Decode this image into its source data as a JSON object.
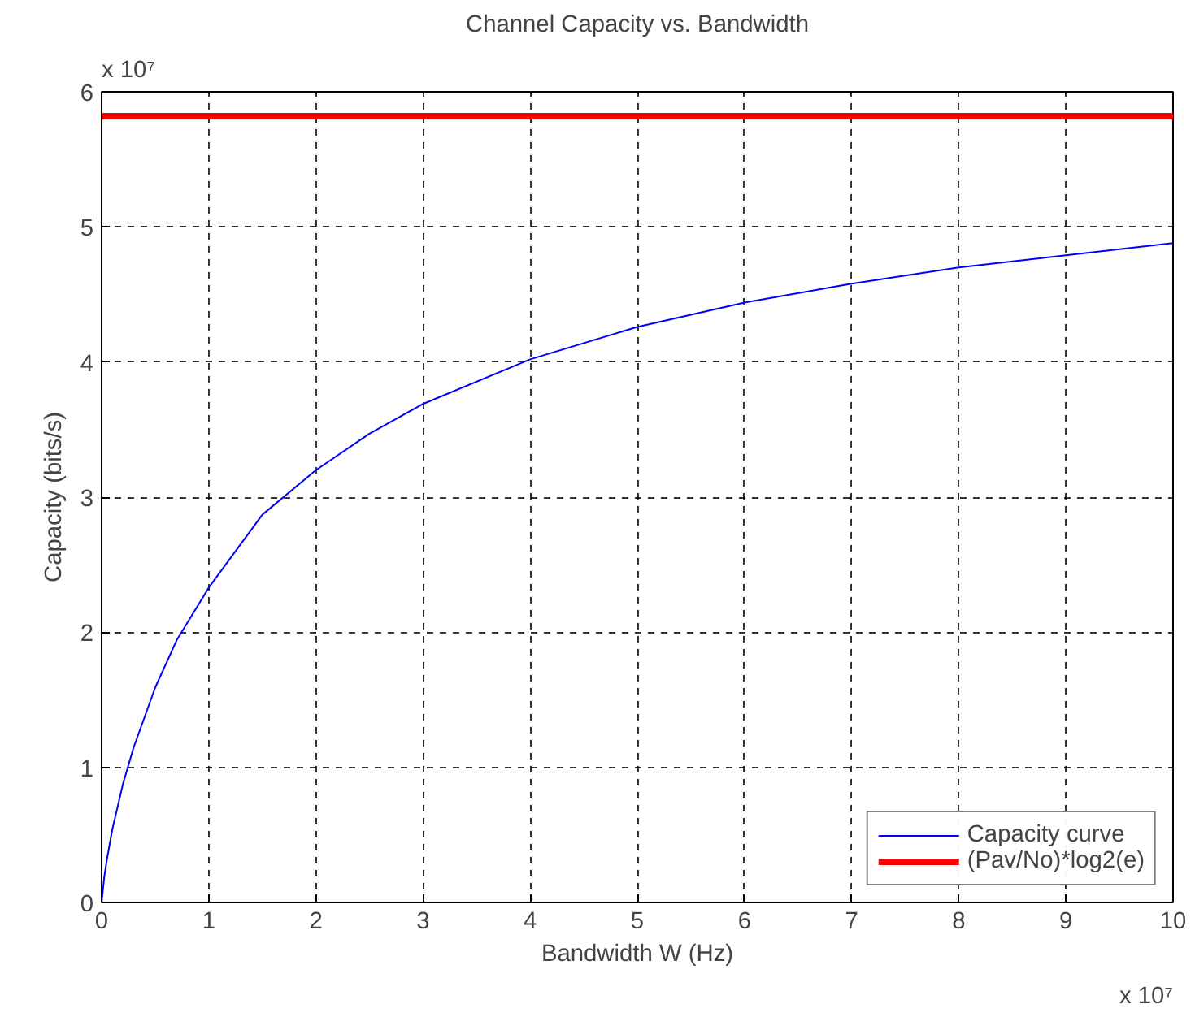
{
  "chart_data": {
    "type": "line",
    "title": "Channel Capacity vs. Bandwidth",
    "xlabel": "Bandwidth W (Hz)",
    "ylabel": "Capacity (bits/s)",
    "annotations": [
      "x 10⁷",
      "x 10⁷"
    ],
    "xlim": [
      0,
      10
    ],
    "ylim": [
      0,
      6
    ],
    "xticks": [
      0,
      1,
      2,
      3,
      4,
      5,
      6,
      7,
      8,
      9,
      10
    ],
    "yticks": [
      0,
      1,
      2,
      3,
      4,
      5,
      6
    ],
    "grid": true,
    "legend": "bottom right",
    "line_style": "solid",
    "series": [
      {
        "name": "Capacity curve",
        "color": "#0000ff",
        "x": [
          0,
          0.025,
          0.05,
          0.1,
          0.2,
          0.3,
          0.5,
          0.7,
          1,
          1.5,
          2,
          2.5,
          3,
          4,
          5,
          6,
          7,
          8,
          9,
          10
        ],
        "values": [
          0,
          0.19,
          0.32,
          0.54,
          0.88,
          1.15,
          1.59,
          1.94,
          2.33,
          2.87,
          3.2,
          3.47,
          3.69,
          4.02,
          4.26,
          4.44,
          4.58,
          4.7,
          4.79,
          4.88
        ]
      },
      {
        "name": "(Pav/No)*log2(e)",
        "color": "#ff0000",
        "x": [
          0,
          10
        ],
        "values": [
          5.82,
          5.82
        ]
      }
    ]
  }
}
